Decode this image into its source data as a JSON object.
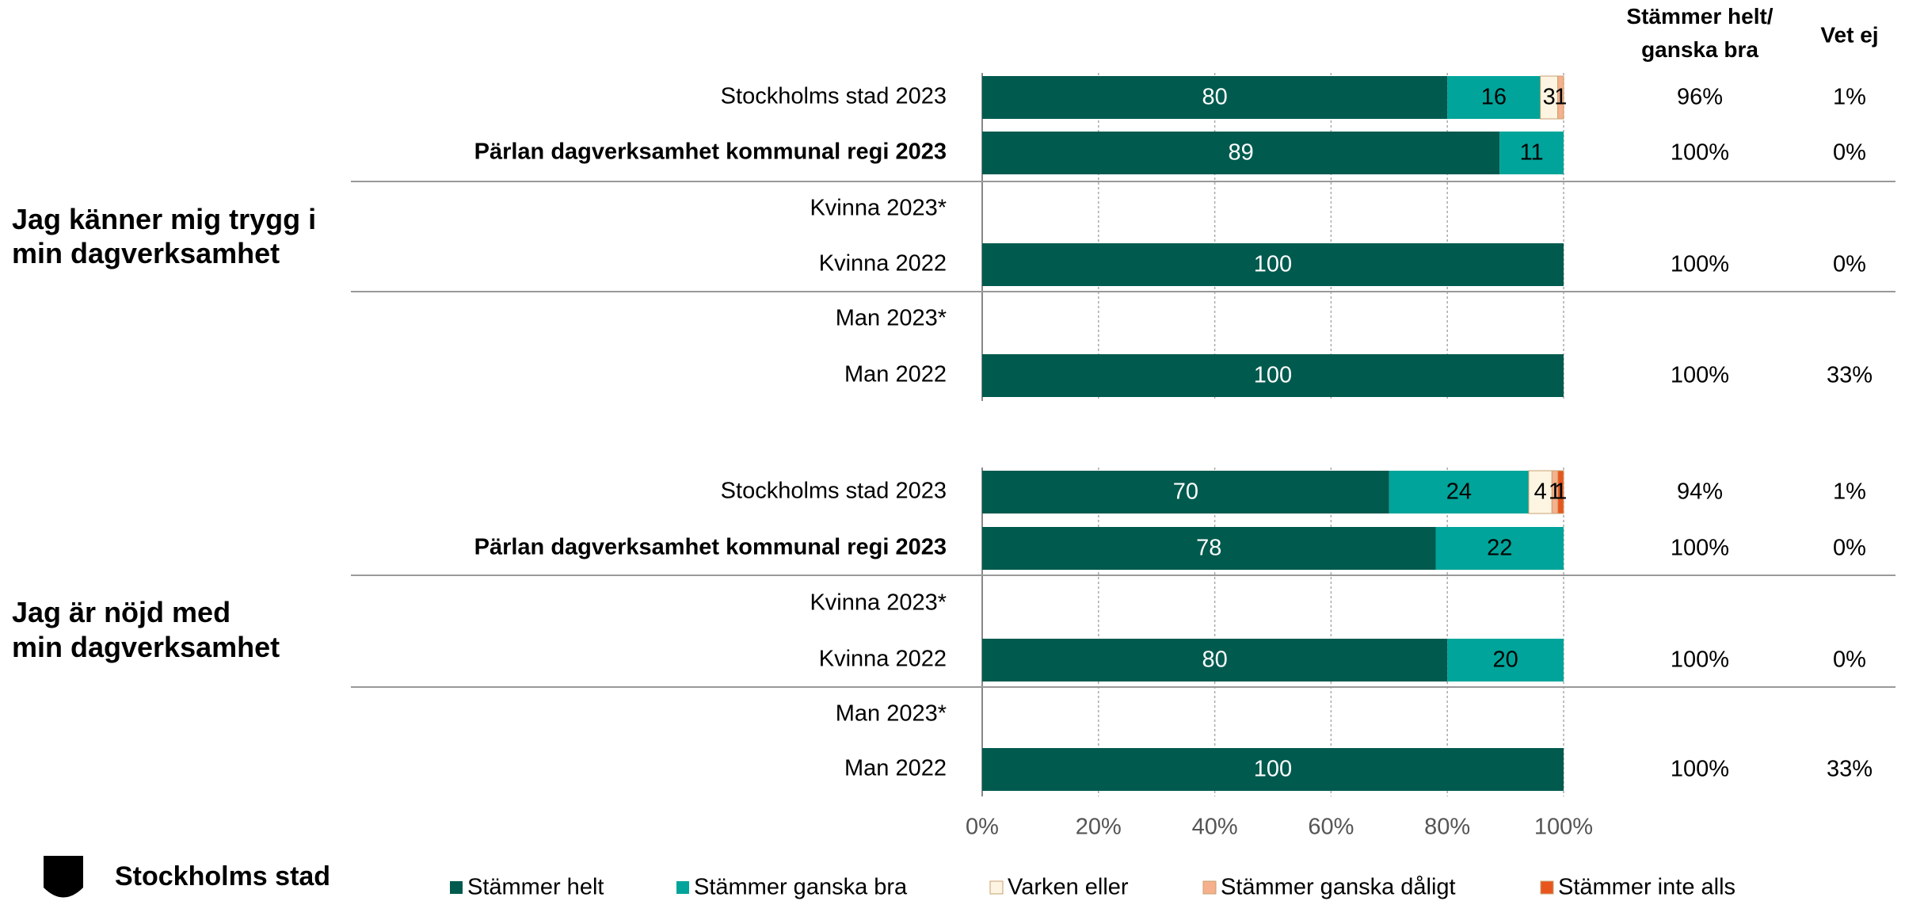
{
  "chart_data": {
    "type": "bar",
    "stacked": true,
    "orientation": "horizontal",
    "highlight_category": 1,
    "series": [
      {
        "name": "Stämmer helt",
        "color": "#005a4e"
      },
      {
        "name": "Stämmer ganska bra",
        "color": "#00a49a"
      },
      {
        "name": "Varken eller",
        "color": "#fdf5e2"
      },
      {
        "name": "Stämmer ganska dåligt",
        "color": "#f6b08c"
      },
      {
        "name": "Stämmer inte alls",
        "color": "#e8561e"
      }
    ],
    "summary_headers": [
      "Stämmer helt/ ganska bra",
      "Vet ej"
    ],
    "xlim": [
      0,
      100
    ],
    "xticks": [
      {
        "value": 0,
        "label": "0%"
      },
      {
        "value": 20,
        "label": "20%"
      },
      {
        "value": 40,
        "label": "40%"
      },
      {
        "value": 60,
        "label": "60%"
      },
      {
        "value": 80,
        "label": "80%"
      },
      {
        "value": 100,
        "label": "100%"
      }
    ],
    "groups": [
      {
        "title": "Jag känner mig trygg i min dagverksamhet",
        "categories": [
          "Stockholms stad 2023",
          "Pärlan dagverksamhet kommunal regi 2023",
          "Kvinna 2023*",
          "Kvinna 2022",
          "Man 2023*",
          "Man 2022"
        ],
        "values": [
          [
            80,
            16,
            3,
            1,
            null
          ],
          [
            89,
            11,
            null,
            null,
            null
          ],
          [
            null,
            null,
            null,
            null,
            null
          ],
          [
            100,
            null,
            null,
            null,
            null
          ],
          [
            null,
            null,
            null,
            null,
            null
          ],
          [
            100,
            null,
            null,
            null,
            null
          ]
        ],
        "summary": [
          [
            "96%",
            "1%"
          ],
          [
            "100%",
            "0%"
          ],
          [
            null,
            null
          ],
          [
            "100%",
            "0%"
          ],
          [
            null,
            null
          ],
          [
            "100%",
            "33%"
          ]
        ]
      },
      {
        "title": "Jag är nöjd med min dagverksamhet",
        "categories": [
          "Stockholms stad 2023",
          "Pärlan dagverksamhet kommunal regi 2023",
          "Kvinna 2023*",
          "Kvinna 2022",
          "Man 2023*",
          "Man 2022"
        ],
        "values": [
          [
            70,
            24,
            4,
            1,
            1
          ],
          [
            78,
            22,
            null,
            null,
            null
          ],
          [
            null,
            null,
            null,
            null,
            null
          ],
          [
            80,
            20,
            null,
            null,
            null
          ],
          [
            null,
            null,
            null,
            null,
            null
          ],
          [
            100,
            null,
            null,
            null,
            null
          ]
        ],
        "summary": [
          [
            "94%",
            "1%"
          ],
          [
            "100%",
            "0%"
          ],
          [
            null,
            null
          ],
          [
            "100%",
            "0%"
          ],
          [
            null,
            null
          ],
          [
            "100%",
            "33%"
          ]
        ]
      }
    ],
    "logo_text": "Stockholms stad"
  }
}
